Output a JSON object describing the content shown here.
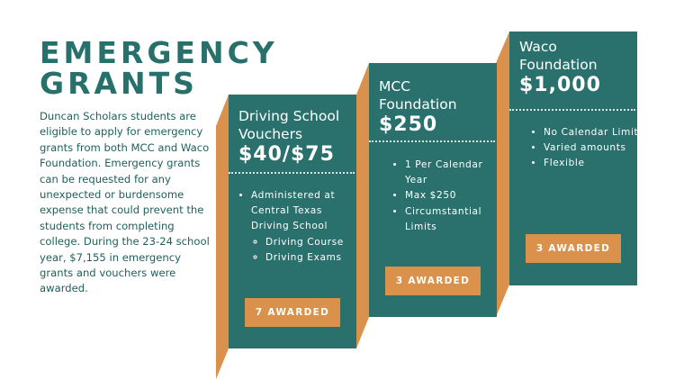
{
  "title": [
    "EMERGENCY",
    "GRANTS"
  ],
  "intro": "Duncan Scholars students are eligible to apply for emergency grants from both MCC and Waco Foundation. Emergency grants can be requested for any unexpected or burdensome expense that could prevent the students from completing college. During the 23-24 school year, $7,155 in emergency grants and vouchers were awarded.",
  "colors": {
    "teal": "#2a716d",
    "orange": "#d9914c",
    "title": "#27706c"
  },
  "cards": [
    {
      "name": [
        "Driving School",
        "Vouchers"
      ],
      "amount": "$40/$75",
      "bullets": [
        "Administered at Central Texas Driving School"
      ],
      "sub_bullets": [
        "Driving Course",
        "Driving Exams"
      ],
      "awarded": "7 AWARDED"
    },
    {
      "name": [
        "MCC",
        "Foundation"
      ],
      "amount": "$250",
      "bullets": [
        "1 Per Calendar Year",
        "Max $250",
        "Circumstantial Limits"
      ],
      "awarded": "3 AWARDED"
    },
    {
      "name": [
        "Waco",
        "Foundation"
      ],
      "amount": "$1,000",
      "bullets": [
        "No Calendar Limits",
        "Varied amounts",
        "Flexible"
      ],
      "awarded": "3 AWARDED"
    }
  ]
}
